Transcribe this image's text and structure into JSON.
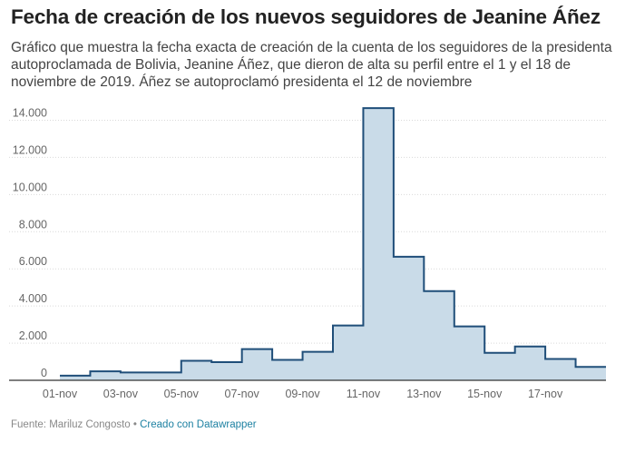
{
  "title": "Fecha de creación de los nuevos seguidores de Jeanine Áñez",
  "subtitle": "Gráfico que muestra la fecha exacta de creación de la cuenta de los seguidores de la presidenta autoproclamada de Bolivia, Jeanine Áñez, que dieron de alta su perfil entre el 1 y el 18 de noviembre de 2019. Áñez se autoproclamó presidenta el 12 de noviembre",
  "footer": {
    "source_label": "Fuente: Mariluz Congosto",
    "separator": "•",
    "credit_link": "Creado con Datawrapper"
  },
  "colors": {
    "line": "#1f4e79",
    "fill": "#c9dbe8",
    "grid": "#d9d9d9",
    "baseline": "#333333"
  },
  "chart_data": {
    "type": "area",
    "step": true,
    "x": [
      "01-nov",
      "02-nov",
      "03-nov",
      "04-nov",
      "05-nov",
      "06-nov",
      "07-nov",
      "08-nov",
      "09-nov",
      "10-nov",
      "11-nov",
      "12-nov",
      "13-nov",
      "14-nov",
      "15-nov",
      "16-nov",
      "17-nov",
      "18-nov"
    ],
    "values": [
      250,
      480,
      420,
      420,
      1050,
      980,
      1680,
      1100,
      1530,
      2950,
      14650,
      6650,
      4800,
      2900,
      1480,
      1820,
      1150,
      720
    ],
    "x_ticks": [
      "01-nov",
      "03-nov",
      "05-nov",
      "07-nov",
      "09-nov",
      "11-nov",
      "13-nov",
      "15-nov",
      "17-nov"
    ],
    "y_ticks": [
      "0",
      "2.000",
      "4.000",
      "6.000",
      "8.000",
      "10.000",
      "12.000",
      "14.000"
    ],
    "y_tick_values": [
      0,
      2000,
      4000,
      6000,
      8000,
      10000,
      12000,
      14000
    ],
    "ylim": [
      0,
      15000
    ],
    "grid": true,
    "xlabel": "",
    "ylabel": ""
  }
}
